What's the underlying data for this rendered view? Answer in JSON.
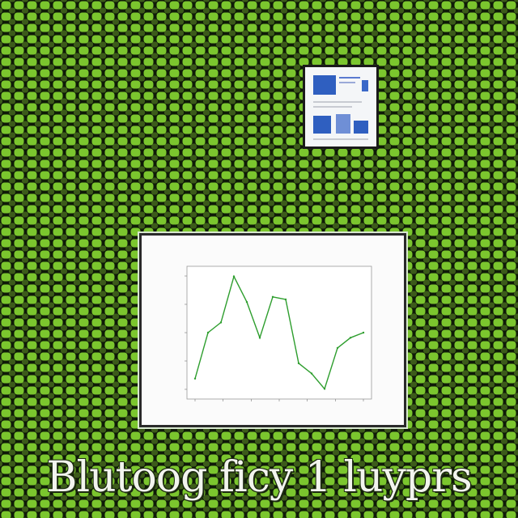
{
  "caption": "Blutoog ficy 1 luyprs",
  "colors": {
    "pattern_light": "#7bc62e",
    "pattern_dark": "#0f1a08",
    "line": "#2e9e2e",
    "thumbnail_blue": "#2f5fc0"
  },
  "small_picture": {
    "icon": "chart-thumbnail-icon"
  },
  "chart_data": {
    "type": "line",
    "title": "",
    "xlabel": "",
    "ylabel": "",
    "x": [
      0,
      1,
      2,
      3,
      4,
      5,
      6,
      7,
      8,
      9,
      10,
      11,
      12,
      13
    ],
    "values": [
      1.2,
      2.1,
      2.3,
      3.2,
      2.7,
      2.0,
      2.8,
      2.75,
      1.5,
      1.3,
      1.0,
      1.8,
      2.0,
      2.1
    ],
    "ylim": [
      0.8,
      3.4
    ],
    "grid": false
  }
}
